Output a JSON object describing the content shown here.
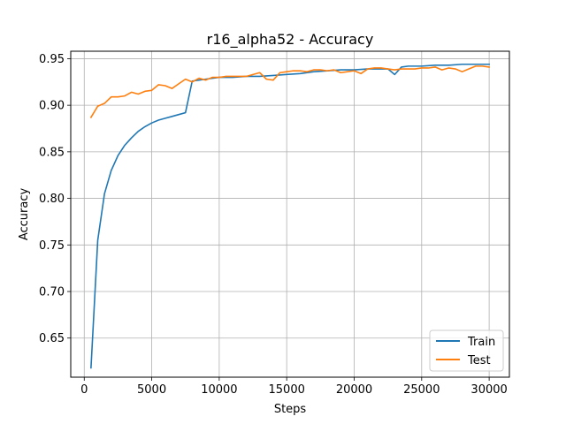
{
  "chart_data": {
    "type": "line",
    "title": "r16_alpha52 - Accuracy",
    "xlabel": "Steps",
    "ylabel": "Accuracy",
    "xlim": [
      -1000,
      31500
    ],
    "ylim": [
      0.608,
      0.958
    ],
    "xticks": [
      0,
      5000,
      10000,
      15000,
      20000,
      25000,
      30000
    ],
    "xtick_labels": [
      "0",
      "5000",
      "10000",
      "15000",
      "20000",
      "25000",
      "30000"
    ],
    "yticks": [
      0.65,
      0.7,
      0.75,
      0.8,
      0.85,
      0.9,
      0.95
    ],
    "ytick_labels": [
      "0.65",
      "0.70",
      "0.75",
      "0.80",
      "0.85",
      "0.90",
      "0.95"
    ],
    "grid": true,
    "legend_position": "lower-right",
    "series": [
      {
        "name": "Train",
        "color": "#1f77b4",
        "x": [
          500,
          1000,
          1500,
          2000,
          2500,
          3000,
          3500,
          4000,
          4500,
          5000,
          5500,
          6000,
          6500,
          7000,
          7500,
          8000,
          8500,
          9000,
          9500,
          10000,
          11000,
          12000,
          13000,
          14000,
          15000,
          16000,
          17000,
          18000,
          19000,
          20000,
          21000,
          22000,
          22500,
          23000,
          23500,
          24000,
          25000,
          26000,
          27000,
          28000,
          29000,
          30000
        ],
        "y": [
          0.618,
          0.755,
          0.805,
          0.83,
          0.846,
          0.857,
          0.865,
          0.872,
          0.877,
          0.881,
          0.884,
          0.886,
          0.888,
          0.89,
          0.892,
          0.926,
          0.927,
          0.928,
          0.929,
          0.93,
          0.93,
          0.931,
          0.931,
          0.932,
          0.933,
          0.934,
          0.936,
          0.937,
          0.938,
          0.938,
          0.939,
          0.939,
          0.939,
          0.933,
          0.941,
          0.942,
          0.942,
          0.943,
          0.943,
          0.944,
          0.944,
          0.944
        ]
      },
      {
        "name": "Test",
        "color": "#ff7f0e",
        "x": [
          500,
          1000,
          1500,
          2000,
          2500,
          3000,
          3500,
          4000,
          4500,
          5000,
          5500,
          6000,
          6500,
          7000,
          7500,
          8000,
          8500,
          9000,
          9500,
          10000,
          10500,
          11000,
          11500,
          12000,
          12500,
          13000,
          13500,
          14000,
          14500,
          15000,
          15500,
          16000,
          16500,
          17000,
          17500,
          18000,
          18500,
          19000,
          19500,
          20000,
          20500,
          21000,
          21500,
          22000,
          22500,
          23000,
          23500,
          24000,
          24500,
          25000,
          25500,
          26000,
          26500,
          27000,
          27500,
          28000,
          28500,
          29000,
          29500,
          30000
        ],
        "y": [
          0.887,
          0.899,
          0.902,
          0.909,
          0.909,
          0.91,
          0.914,
          0.912,
          0.915,
          0.916,
          0.922,
          0.921,
          0.918,
          0.923,
          0.928,
          0.925,
          0.929,
          0.927,
          0.93,
          0.93,
          0.931,
          0.931,
          0.931,
          0.931,
          0.933,
          0.935,
          0.928,
          0.927,
          0.935,
          0.936,
          0.937,
          0.937,
          0.936,
          0.938,
          0.938,
          0.937,
          0.938,
          0.935,
          0.936,
          0.937,
          0.934,
          0.939,
          0.94,
          0.94,
          0.939,
          0.938,
          0.939,
          0.939,
          0.939,
          0.94,
          0.94,
          0.941,
          0.938,
          0.94,
          0.939,
          0.936,
          0.939,
          0.942,
          0.942,
          0.941
        ]
      }
    ]
  }
}
